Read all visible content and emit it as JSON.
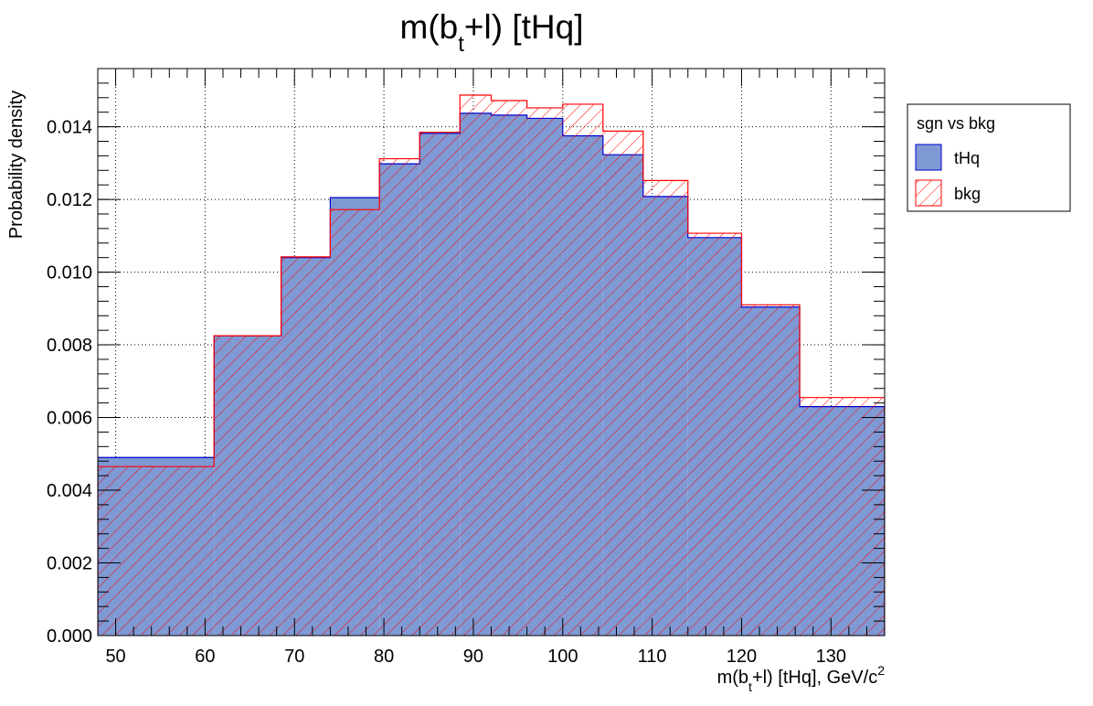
{
  "chart_data": {
    "type": "histogram",
    "title": {
      "base": "m(b",
      "sub": "t",
      "rest": "+l) [tHq]"
    },
    "xlabel": {
      "base": "m(b",
      "sub": "t",
      "mid": "+l) [tHq], GeV/c",
      "sup": "2"
    },
    "ylabel": "Probability density",
    "xlim": [
      48,
      136
    ],
    "ylim": [
      0,
      0.0156
    ],
    "x_ticks": [
      "50",
      "60",
      "70",
      "80",
      "90",
      "100",
      "110",
      "120",
      "130"
    ],
    "y_ticks": [
      "0.000",
      "0.002",
      "0.004",
      "0.006",
      "0.008",
      "0.010",
      "0.012",
      "0.014"
    ],
    "grid": true,
    "bin_edges": [
      48,
      61,
      68.5,
      74,
      79.5,
      84,
      88.5,
      92,
      96,
      100,
      104.5,
      109,
      114,
      120,
      126.5,
      136
    ],
    "series": [
      {
        "name": "tHq",
        "color": "#7f99d4",
        "edge": "#0000cc",
        "values": [
          0.0049,
          0.00825,
          0.0104,
          0.01205,
          0.01298,
          0.01382,
          0.01437,
          0.01432,
          0.01423,
          0.01375,
          0.01323,
          0.01208,
          0.01095,
          0.00904,
          0.0063
        ]
      },
      {
        "name": "bkg",
        "color": "#ff0000",
        "edge": "#ff0000",
        "values": [
          0.00465,
          0.00825,
          0.01042,
          0.01172,
          0.01312,
          0.01385,
          0.01487,
          0.01472,
          0.01452,
          0.01462,
          0.01388,
          0.01252,
          0.01107,
          0.0091,
          0.00655
        ]
      }
    ],
    "legend": {
      "header": "sgn vs bkg",
      "position": "top-right outside"
    }
  }
}
